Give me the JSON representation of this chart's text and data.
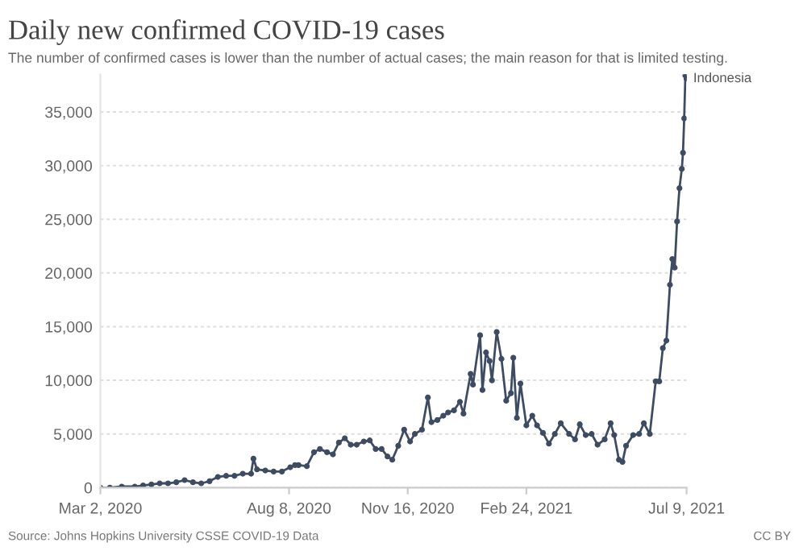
{
  "chart_data": {
    "type": "line",
    "title": "Daily new confirmed COVID-19 cases",
    "subtitle": "The number of confirmed cases is lower than the number of actual cases; the main reason for that is limited testing.",
    "annotations": [
      "Source: Johns Hopkins University CSSE COVID-19 Data",
      "CC BY"
    ],
    "x": [
      "2020-03-02",
      "2020-03-10",
      "2020-03-20",
      "2020-03-31",
      "2020-04-07",
      "2020-04-14",
      "2020-04-21",
      "2020-04-28",
      "2020-05-05",
      "2020-05-12",
      "2020-05-19",
      "2020-05-26",
      "2020-06-02",
      "2020-06-09",
      "2020-06-16",
      "2020-06-23",
      "2020-06-30",
      "2020-07-07",
      "2020-07-09",
      "2020-07-12",
      "2020-07-19",
      "2020-07-26",
      "2020-08-02",
      "2020-08-09",
      "2020-08-13",
      "2020-08-16",
      "2020-08-23",
      "2020-08-29",
      "2020-09-03",
      "2020-09-09",
      "2020-09-14",
      "2020-09-19",
      "2020-09-24",
      "2020-09-29",
      "2020-10-04",
      "2020-10-10",
      "2020-10-15",
      "2020-10-20",
      "2020-10-25",
      "2020-10-30",
      "2020-11-03",
      "2020-11-08",
      "2020-11-13",
      "2020-11-18",
      "2020-11-22",
      "2020-11-28",
      "2020-12-03",
      "2020-12-06",
      "2020-12-11",
      "2020-12-16",
      "2020-12-20",
      "2020-12-25",
      "2020-12-30",
      "2021-01-02",
      "2021-01-08",
      "2021-01-10",
      "2021-01-16",
      "2021-01-18",
      "2021-01-21",
      "2021-01-24",
      "2021-01-26",
      "2021-01-30",
      "2021-02-03",
      "2021-02-07",
      "2021-02-11",
      "2021-02-13",
      "2021-02-16",
      "2021-02-19",
      "2021-02-24",
      "2021-03-01",
      "2021-03-05",
      "2021-03-10",
      "2021-03-15",
      "2021-03-20",
      "2021-03-25",
      "2021-04-01",
      "2021-04-06",
      "2021-04-10",
      "2021-04-15",
      "2021-04-20",
      "2021-04-25",
      "2021-05-01",
      "2021-05-06",
      "2021-05-09",
      "2021-05-13",
      "2021-05-16",
      "2021-05-19",
      "2021-05-25",
      "2021-05-30",
      "2021-06-03",
      "2021-06-08",
      "2021-06-13",
      "2021-06-16",
      "2021-06-19",
      "2021-06-22",
      "2021-06-25",
      "2021-06-27",
      "2021-06-29",
      "2021-07-01",
      "2021-07-03",
      "2021-07-05",
      "2021-07-06",
      "2021-07-07",
      "2021-07-08",
      "2021-07-09"
    ],
    "series": [
      {
        "name": "Indonesia",
        "color": "#3d4b63",
        "values": [
          0,
          0,
          100,
          100,
          200,
          300,
          400,
          400,
          500,
          700,
          500,
          400,
          600,
          1000,
          1100,
          1100,
          1300,
          1300,
          2700,
          1700,
          1600,
          1500,
          1500,
          1900,
          2100,
          2100,
          2000,
          3300,
          3600,
          3300,
          3100,
          4200,
          4600,
          4000,
          4000,
          4300,
          4400,
          3600,
          3600,
          2900,
          2600,
          3900,
          5400,
          4300,
          5000,
          5400,
          8400,
          6100,
          6300,
          6700,
          7000,
          7200,
          8000,
          6900,
          10600,
          9600,
          14200,
          9100,
          12600,
          11800,
          10000,
          14500,
          12000,
          8100,
          8800,
          12100,
          6500,
          9700,
          5800,
          6700,
          5800,
          5100,
          4100,
          5000,
          6000,
          5000,
          4500,
          5900,
          4900,
          5000,
          4000,
          4500,
          6000,
          4900,
          2600,
          2400,
          3900,
          4900,
          5000,
          6000,
          5000,
          9900,
          9900,
          13000,
          13700,
          18900,
          21300,
          20500,
          24800,
          27900,
          29700,
          31200,
          34400,
          38400,
          38100
        ]
      }
    ],
    "xlim": [
      "2020-03-02",
      "2021-07-09"
    ],
    "xticks": [
      {
        "value": "2020-03-02",
        "label": "Mar 2, 2020"
      },
      {
        "value": "2020-08-08",
        "label": "Aug 8, 2020"
      },
      {
        "value": "2020-11-16",
        "label": "Nov 16, 2020"
      },
      {
        "value": "2021-02-24",
        "label": "Feb 24, 2021"
      },
      {
        "value": "2021-07-09",
        "label": "Jul 9, 2021"
      }
    ],
    "ylim": [
      0,
      38500
    ],
    "yticks": [
      0,
      {
        "value": 5000,
        "label": "5,000"
      },
      {
        "value": 10000,
        "label": "10,000"
      },
      {
        "value": 15000,
        "label": "15,000"
      },
      {
        "value": 20000,
        "label": "20,000"
      },
      {
        "value": 25000,
        "label": "25,000"
      },
      {
        "value": 30000,
        "label": "30,000"
      },
      {
        "value": 35000,
        "label": "35,000"
      }
    ],
    "grid": "y",
    "legend": false,
    "marker": "circle",
    "line_style": "solid"
  }
}
